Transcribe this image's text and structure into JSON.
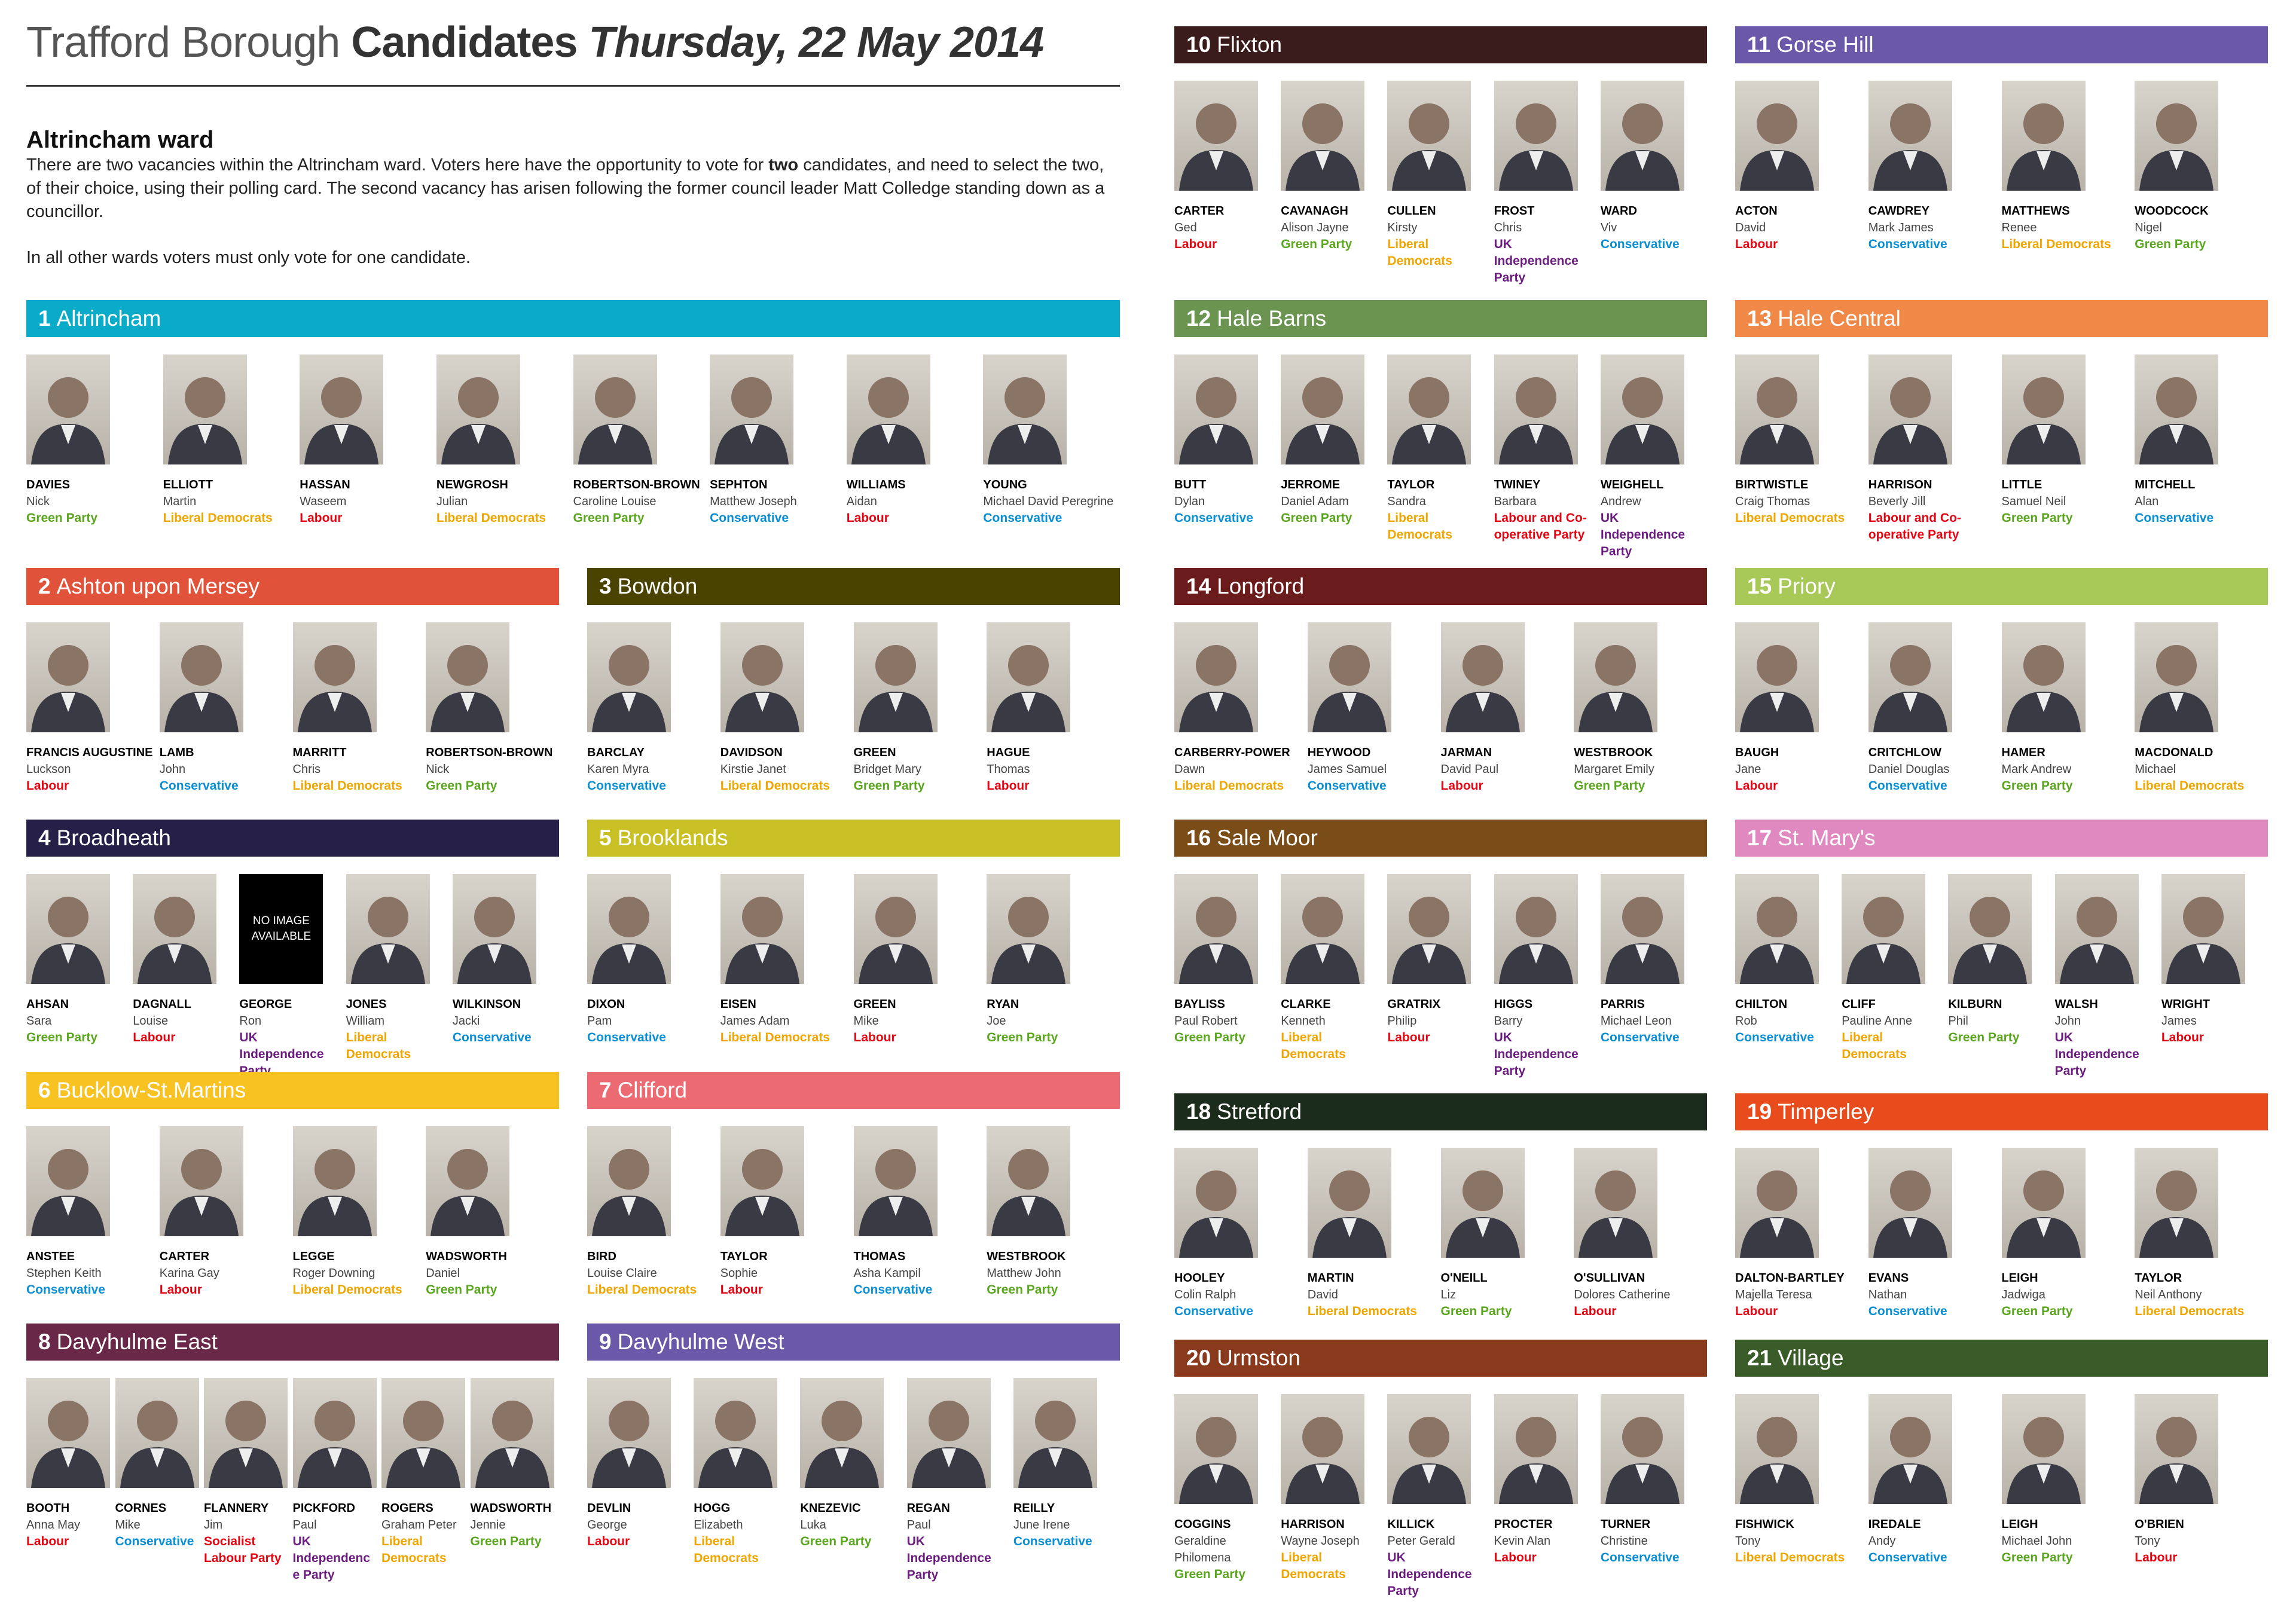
{
  "title": {
    "part1": "Trafford Borough",
    "part2": "Candidates",
    "part3": "Thursday, 22 May 2014"
  },
  "intro": {
    "heading": "Altrincham ward",
    "para1_a": "There are two vacancies within the Altrincham ward. Voters here have the opportunity to vote for ",
    "para1_bold": "two",
    "para1_b": " candidates, and need to select the two, of their choice, using their polling card. The second vacancy has arisen following the former council leader Matt Colledge standing down as a councillor.",
    "para2": "In all other wards voters must only vote for one candidate."
  },
  "no_image_text": "NO IMAGE AVAILABLE",
  "party_colors": {
    "Labour": "#e30613",
    "Labour and Co-operative Party": "#e30613",
    "Socialist Labour Party": "#e30613",
    "Conservative": "#0a8fd5",
    "Liberal Democrats": "#efa600",
    "Green Party": "#5aa61e",
    "UK Independence Party": "#6b1d7f"
  },
  "wards": [
    {
      "number": "1",
      "name": "Altrincham",
      "color": "#0aabc8",
      "candidates": [
        {
          "surname": "DAVIES",
          "forenames": "Nick",
          "party": "Green Party"
        },
        {
          "surname": "ELLIOTT",
          "forenames": "Martin",
          "party": "Liberal Democrats"
        },
        {
          "surname": "HASSAN",
          "forenames": "Waseem",
          "party": "Labour"
        },
        {
          "surname": "NEWGROSH",
          "forenames": "Julian",
          "party": "Liberal Democrats"
        },
        {
          "surname": "ROBERTSON-BROWN",
          "forenames": "Caroline Louise",
          "party": "Green Party"
        },
        {
          "surname": "SEPHTON",
          "forenames": "Matthew Joseph",
          "party": "Conservative"
        },
        {
          "surname": "WILLIAMS",
          "forenames": "Aidan",
          "party": "Labour"
        },
        {
          "surname": "YOUNG",
          "forenames": "Michael David Peregrine",
          "party": "Conservative"
        }
      ]
    },
    {
      "number": "2",
      "name": "Ashton upon Mersey",
      "color": "#e0533a",
      "candidates": [
        {
          "surname": "FRANCIS AUGUSTINE",
          "forenames": "Luckson",
          "party": "Labour"
        },
        {
          "surname": "LAMB",
          "forenames": "John",
          "party": "Conservative"
        },
        {
          "surname": "MARRITT",
          "forenames": "Chris",
          "party": "Liberal Democrats"
        },
        {
          "surname": "ROBERTSON-BROWN",
          "forenames": "Nick",
          "party": "Green Party"
        }
      ]
    },
    {
      "number": "3",
      "name": "Bowdon",
      "color": "#4a4300",
      "candidates": [
        {
          "surname": "BARCLAY",
          "forenames": "Karen Myra",
          "party": "Conservative"
        },
        {
          "surname": "DAVIDSON",
          "forenames": "Kirstie Janet",
          "party": "Liberal Democrats"
        },
        {
          "surname": "GREEN",
          "forenames": "Bridget Mary",
          "party": "Green Party"
        },
        {
          "surname": "HAGUE",
          "forenames": "Thomas",
          "party": "Labour"
        }
      ]
    },
    {
      "number": "4",
      "name": "Broadheath",
      "color": "#262048",
      "candidates": [
        {
          "surname": "AHSAN",
          "forenames": "Sara",
          "party": "Green Party"
        },
        {
          "surname": "DAGNALL",
          "forenames": "Louise",
          "party": "Labour"
        },
        {
          "surname": "GEORGE",
          "forenames": "Ron",
          "party": "UK Independence Party",
          "no_image": true
        },
        {
          "surname": "JONES",
          "forenames": "William",
          "party": "Liberal Democrats"
        },
        {
          "surname": "WILKINSON",
          "forenames": "Jacki",
          "party": "Conservative"
        }
      ]
    },
    {
      "number": "5",
      "name": "Brooklands",
      "color": "#c8c024",
      "candidates": [
        {
          "surname": "DIXON",
          "forenames": "Pam",
          "party": "Conservative"
        },
        {
          "surname": "EISEN",
          "forenames": "James Adam",
          "party": "Liberal Democrats"
        },
        {
          "surname": "GREEN",
          "forenames": "Mike",
          "party": "Labour"
        },
        {
          "surname": "RYAN",
          "forenames": "Joe",
          "party": "Green Party"
        }
      ]
    },
    {
      "number": "6",
      "name": "Bucklow-St.Martins",
      "color": "#f8c222",
      "candidates": [
        {
          "surname": "ANSTEE",
          "forenames": "Stephen Keith",
          "party": "Conservative"
        },
        {
          "surname": "CARTER",
          "forenames": "Karina Gay",
          "party": "Labour"
        },
        {
          "surname": "LEGGE",
          "forenames": "Roger Downing",
          "party": "Liberal Democrats"
        },
        {
          "surname": "WADSWORTH",
          "forenames": "Daniel",
          "party": "Green Party"
        }
      ]
    },
    {
      "number": "7",
      "name": "Clifford",
      "color": "#ec6b72",
      "candidates": [
        {
          "surname": "BIRD",
          "forenames": "Louise Claire",
          "party": "Liberal Democrats"
        },
        {
          "surname": "TAYLOR",
          "forenames": "Sophie",
          "party": "Labour"
        },
        {
          "surname": "THOMAS",
          "forenames": "Asha Kampil",
          "party": "Conservative"
        },
        {
          "surname": "WESTBROOK",
          "forenames": "Matthew John",
          "party": "Green Party"
        }
      ]
    },
    {
      "number": "8",
      "name": "Davyhulme East",
      "color": "#6a2848",
      "candidates": [
        {
          "surname": "BOOTH",
          "forenames": "Anna May",
          "party": "Labour"
        },
        {
          "surname": "CORNES",
          "forenames": "Mike",
          "party": "Conservative"
        },
        {
          "surname": "FLANNERY",
          "forenames": "Jim",
          "party": "Socialist Labour Party"
        },
        {
          "surname": "PICKFORD",
          "forenames": "Paul",
          "party": "UK Independence Party"
        },
        {
          "surname": "ROGERS",
          "forenames": "Graham Peter",
          "party": "Liberal Democrats"
        },
        {
          "surname": "WADSWORTH",
          "forenames": "Jennie",
          "party": "Green Party"
        }
      ]
    },
    {
      "number": "9",
      "name": "Davyhulme West",
      "color": "#6a58a8",
      "candidates": [
        {
          "surname": "DEVLIN",
          "forenames": "George",
          "party": "Labour"
        },
        {
          "surname": "HOGG",
          "forenames": "Elizabeth",
          "party": "Liberal Democrats"
        },
        {
          "surname": "KNEZEVIC",
          "forenames": "Luka",
          "party": "Green Party"
        },
        {
          "surname": "REGAN",
          "forenames": "Paul",
          "party": "UK Independence Party"
        },
        {
          "surname": "REILLY",
          "forenames": "June Irene",
          "party": "Conservative"
        }
      ]
    },
    {
      "number": "10",
      "name": "Flixton",
      "color": "#3a1c1c",
      "candidates": [
        {
          "surname": "CARTER",
          "forenames": "Ged",
          "party": "Labour"
        },
        {
          "surname": "CAVANAGH",
          "forenames": "Alison Jayne",
          "party": "Green Party"
        },
        {
          "surname": "CULLEN",
          "forenames": "Kirsty",
          "party": "Liberal Democrats"
        },
        {
          "surname": "FROST",
          "forenames": "Chris",
          "party": "UK Independence Party"
        },
        {
          "surname": "WARD",
          "forenames": "Viv",
          "party": "Conservative"
        }
      ]
    },
    {
      "number": "11",
      "name": "Gorse Hill",
      "color": "#6a58a8",
      "candidates": [
        {
          "surname": "ACTON",
          "forenames": "David",
          "party": "Labour"
        },
        {
          "surname": "CAWDREY",
          "forenames": "Mark James",
          "party": "Conservative"
        },
        {
          "surname": "MATTHEWS",
          "forenames": "Renee",
          "party": "Liberal Democrats"
        },
        {
          "surname": "WOODCOCK",
          "forenames": "Nigel",
          "party": "Green Party"
        }
      ]
    },
    {
      "number": "12",
      "name": "Hale Barns",
      "color": "#6a9450",
      "candidates": [
        {
          "surname": "BUTT",
          "forenames": "Dylan",
          "party": "Conservative"
        },
        {
          "surname": "JERROME",
          "forenames": "Daniel Adam",
          "party": "Green Party"
        },
        {
          "surname": "TAYLOR",
          "forenames": "Sandra",
          "party": "Liberal Democrats"
        },
        {
          "surname": "TWINEY",
          "forenames": "Barbara",
          "party": "Labour and Co-operative Party"
        },
        {
          "surname": "WEIGHELL",
          "forenames": "Andrew",
          "party": "UK Independence Party"
        }
      ]
    },
    {
      "number": "13",
      "name": "Hale Central",
      "color": "#f08848",
      "candidates": [
        {
          "surname": "BIRTWISTLE",
          "forenames": "Craig Thomas",
          "party": "Liberal Democrats"
        },
        {
          "surname": "HARRISON",
          "forenames": "Beverly Jill",
          "party": "Labour and Co-operative Party"
        },
        {
          "surname": "LITTLE",
          "forenames": "Samuel Neil",
          "party": "Green Party"
        },
        {
          "surname": "MITCHELL",
          "forenames": "Alan",
          "party": "Conservative"
        }
      ]
    },
    {
      "number": "14",
      "name": "Longford",
      "color": "#6a1c1c",
      "candidates": [
        {
          "surname": "CARBERRY-POWER",
          "forenames": "Dawn",
          "party": "Liberal Democrats"
        },
        {
          "surname": "HEYWOOD",
          "forenames": "James Samuel",
          "party": "Conservative"
        },
        {
          "surname": "JARMAN",
          "forenames": "David Paul",
          "party": "Labour"
        },
        {
          "surname": "WESTBROOK",
          "forenames": "Margaret Emily",
          "party": "Green Party"
        }
      ]
    },
    {
      "number": "15",
      "name": "Priory",
      "color": "#a8c858",
      "candidates": [
        {
          "surname": "BAUGH",
          "forenames": "Jane",
          "party": "Labour"
        },
        {
          "surname": "CRITCHLOW",
          "forenames": "Daniel Douglas",
          "party": "Conservative"
        },
        {
          "surname": "HAMER",
          "forenames": "Mark Andrew",
          "party": "Green Party"
        },
        {
          "surname": "MACDONALD",
          "forenames": "Michael",
          "party": "Liberal Democrats"
        }
      ]
    },
    {
      "number": "16",
      "name": "Sale Moor",
      "color": "#7a4c18",
      "candidates": [
        {
          "surname": "BAYLISS",
          "forenames": "Paul Robert",
          "party": "Green Party"
        },
        {
          "surname": "CLARKE",
          "forenames": "Kenneth",
          "party": "Liberal Democrats"
        },
        {
          "surname": "GRATRIX",
          "forenames": "Philip",
          "party": "Labour"
        },
        {
          "surname": "HIGGS",
          "forenames": "Barry",
          "party": "UK Independence Party"
        },
        {
          "surname": "PARRIS",
          "forenames": "Michael Leon",
          "party": "Conservative"
        }
      ]
    },
    {
      "number": "17",
      "name": "St. Mary's",
      "color": "#e088c0",
      "candidates": [
        {
          "surname": "CHILTON",
          "forenames": "Rob",
          "party": "Conservative"
        },
        {
          "surname": "CLIFF",
          "forenames": "Pauline Anne",
          "party": "Liberal Democrats"
        },
        {
          "surname": "KILBURN",
          "forenames": "Phil",
          "party": "Green Party"
        },
        {
          "surname": "WALSH",
          "forenames": "John",
          "party": "UK Independence Party"
        },
        {
          "surname": "WRIGHT",
          "forenames": "James",
          "party": "Labour"
        }
      ]
    },
    {
      "number": "18",
      "name": "Stretford",
      "color": "#1c2c1c",
      "candidates": [
        {
          "surname": "HOOLEY",
          "forenames": "Colin Ralph",
          "party": "Conservative"
        },
        {
          "surname": "MARTIN",
          "forenames": "David",
          "party": "Liberal Democrats"
        },
        {
          "surname": "O'NEILL",
          "forenames": "Liz",
          "party": "Green Party"
        },
        {
          "surname": "O'SULLIVAN",
          "forenames": "Dolores Catherine",
          "party": "Labour"
        }
      ]
    },
    {
      "number": "19",
      "name": "Timperley",
      "color": "#e84c1c",
      "candidates": [
        {
          "surname": "DALTON-BARTLEY",
          "forenames": "Majella Teresa",
          "party": "Labour"
        },
        {
          "surname": "EVANS",
          "forenames": "Nathan",
          "party": "Conservative"
        },
        {
          "surname": "LEIGH",
          "forenames": "Jadwiga",
          "party": "Green Party"
        },
        {
          "surname": "TAYLOR",
          "forenames": "Neil Anthony",
          "party": "Liberal Democrats"
        }
      ]
    },
    {
      "number": "20",
      "name": "Urmston",
      "color": "#8a3a1c",
      "candidates": [
        {
          "surname": "COGGINS",
          "forenames": "Geraldine Philomena",
          "party": "Green Party"
        },
        {
          "surname": "HARRISON",
          "forenames": "Wayne Joseph",
          "party": "Liberal Democrats"
        },
        {
          "surname": "KILLICK",
          "forenames": "Peter Gerald",
          "party": "UK Independence Party"
        },
        {
          "surname": "PROCTER",
          "forenames": "Kevin Alan",
          "party": "Labour"
        },
        {
          "surname": "TURNER",
          "forenames": "Christine",
          "party": "Conservative"
        }
      ]
    },
    {
      "number": "21",
      "name": "Village",
      "color": "#3a5c28",
      "candidates": [
        {
          "surname": "FISHWICK",
          "forenames": "Tony",
          "party": "Liberal Democrats"
        },
        {
          "surname": "IREDALE",
          "forenames": "Andy",
          "party": "Conservative"
        },
        {
          "surname": "LEIGH",
          "forenames": "Michael John",
          "party": "Green Party"
        },
        {
          "surname": "O'BRIEN",
          "forenames": "Tony",
          "party": "Labour"
        }
      ]
    }
  ]
}
